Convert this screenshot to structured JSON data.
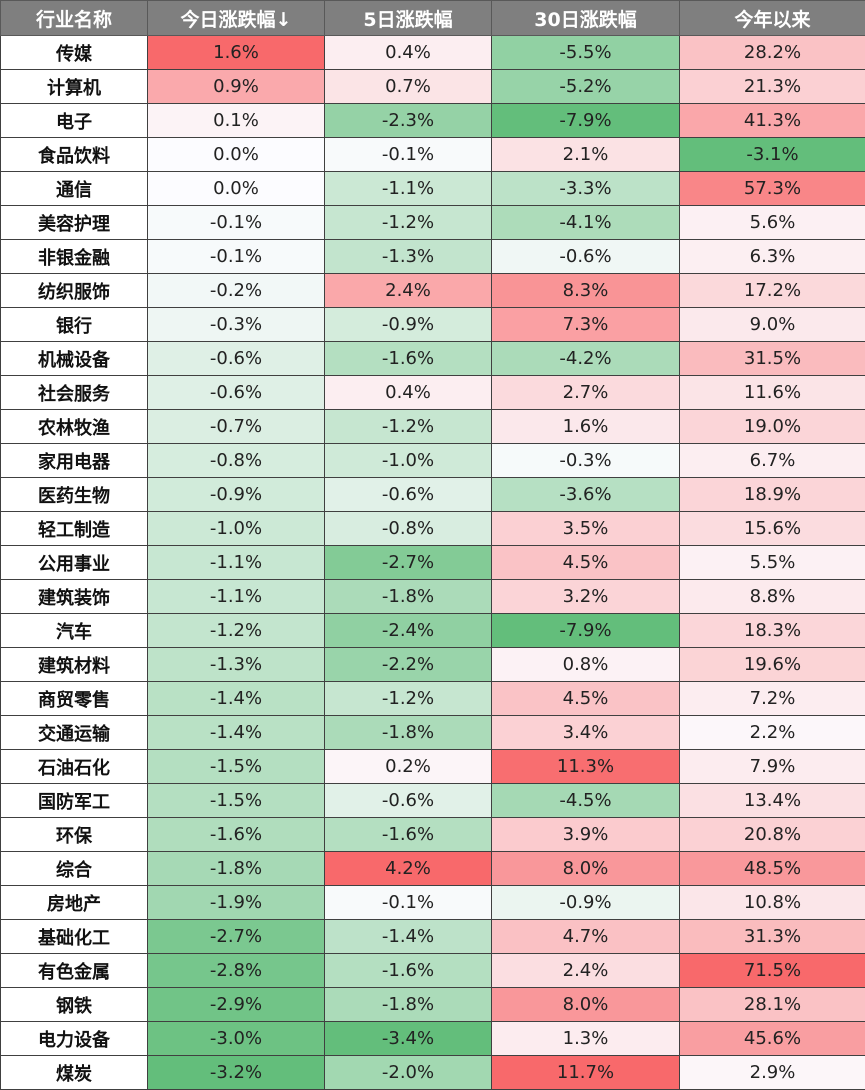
{
  "chart_data": {
    "type": "table",
    "headers": [
      "行业名称",
      "今日涨跌幅↓",
      "5日涨跌幅",
      "30日涨跌幅",
      "今年以来"
    ],
    "colors": {
      "negative": "#63be7b",
      "neutral": "#fcfcff",
      "positive": "#f8696b"
    },
    "rows": [
      [
        "传媒",
        "1.6%",
        "0.4%",
        "-5.5%",
        "28.2%"
      ],
      [
        "计算机",
        "0.9%",
        "0.7%",
        "-5.2%",
        "21.3%"
      ],
      [
        "电子",
        "0.1%",
        "-2.3%",
        "-7.9%",
        "41.3%"
      ],
      [
        "食品饮料",
        "0.0%",
        "-0.1%",
        "2.1%",
        "-3.1%"
      ],
      [
        "通信",
        "0.0%",
        "-1.1%",
        "-3.3%",
        "57.3%"
      ],
      [
        "美容护理",
        "-0.1%",
        "-1.2%",
        "-4.1%",
        "5.6%"
      ],
      [
        "非银金融",
        "-0.1%",
        "-1.3%",
        "-0.6%",
        "6.3%"
      ],
      [
        "纺织服饰",
        "-0.2%",
        "2.4%",
        "8.3%",
        "17.2%"
      ],
      [
        "银行",
        "-0.3%",
        "-0.9%",
        "7.3%",
        "9.0%"
      ],
      [
        "机械设备",
        "-0.6%",
        "-1.6%",
        "-4.2%",
        "31.5%"
      ],
      [
        "社会服务",
        "-0.6%",
        "0.4%",
        "2.7%",
        "11.6%"
      ],
      [
        "农林牧渔",
        "-0.7%",
        "-1.2%",
        "1.6%",
        "19.0%"
      ],
      [
        "家用电器",
        "-0.8%",
        "-1.0%",
        "-0.3%",
        "6.7%"
      ],
      [
        "医药生物",
        "-0.9%",
        "-0.6%",
        "-3.6%",
        "18.9%"
      ],
      [
        "轻工制造",
        "-1.0%",
        "-0.8%",
        "3.5%",
        "15.6%"
      ],
      [
        "公用事业",
        "-1.1%",
        "-2.7%",
        "4.5%",
        "5.5%"
      ],
      [
        "建筑装饰",
        "-1.1%",
        "-1.8%",
        "3.2%",
        "8.8%"
      ],
      [
        "汽车",
        "-1.2%",
        "-2.4%",
        "-7.9%",
        "18.3%"
      ],
      [
        "建筑材料",
        "-1.3%",
        "-2.2%",
        "0.8%",
        "19.6%"
      ],
      [
        "商贸零售",
        "-1.4%",
        "-1.2%",
        "4.5%",
        "7.2%"
      ],
      [
        "交通运输",
        "-1.4%",
        "-1.8%",
        "3.4%",
        "2.2%"
      ],
      [
        "石油石化",
        "-1.5%",
        "0.2%",
        "11.3%",
        "7.9%"
      ],
      [
        "国防军工",
        "-1.5%",
        "-0.6%",
        "-4.5%",
        "13.4%"
      ],
      [
        "环保",
        "-1.6%",
        "-1.6%",
        "3.9%",
        "20.8%"
      ],
      [
        "综合",
        "-1.8%",
        "4.2%",
        "8.0%",
        "48.5%"
      ],
      [
        "房地产",
        "-1.9%",
        "-0.1%",
        "-0.9%",
        "10.8%"
      ],
      [
        "基础化工",
        "-2.7%",
        "-1.4%",
        "4.7%",
        "31.3%"
      ],
      [
        "有色金属",
        "-2.8%",
        "-1.6%",
        "2.4%",
        "71.5%"
      ],
      [
        "钢铁",
        "-2.9%",
        "-1.8%",
        "8.0%",
        "28.1%"
      ],
      [
        "电力设备",
        "-3.0%",
        "-3.4%",
        "1.3%",
        "45.6%"
      ],
      [
        "煤炭",
        "-3.2%",
        "-2.0%",
        "11.7%",
        "2.9%"
      ]
    ]
  }
}
